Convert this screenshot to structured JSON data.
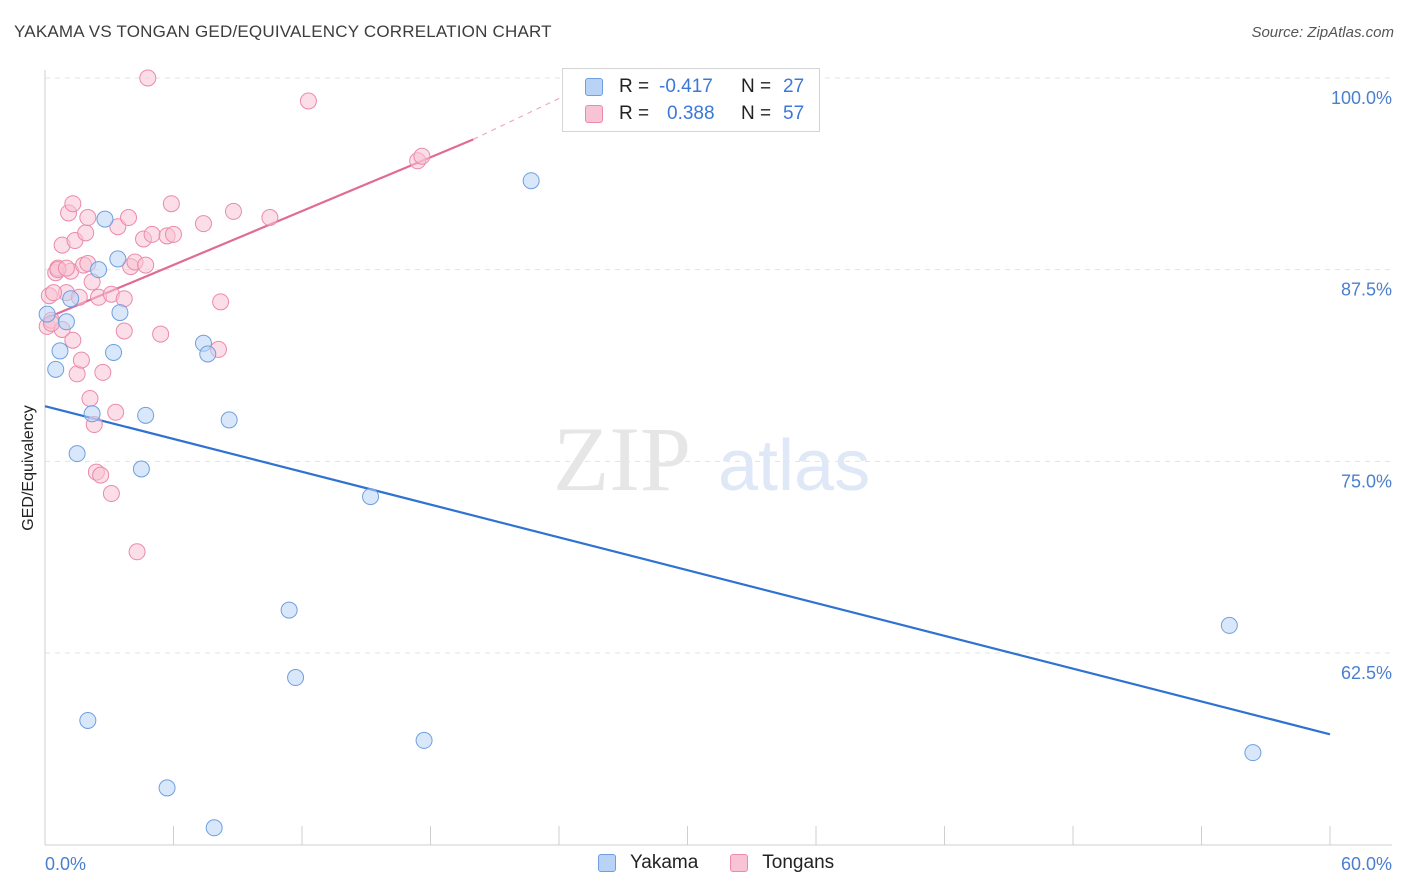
{
  "title": "YAKAMA VS TONGAN GED/EQUIVALENCY CORRELATION CHART",
  "source": "Source: ZipAtlas.com",
  "watermark": {
    "zip": "ZIP",
    "atlas": "atlas"
  },
  "legend": {
    "rows": [
      {
        "r_label": "R =",
        "r_value": "-0.417",
        "n_label": "N =",
        "n_value": "27"
      },
      {
        "r_label": "R =",
        "r_value": "0.388",
        "n_label": "N =",
        "n_value": "57"
      }
    ]
  },
  "bottom_legend": {
    "series1": "Yakama",
    "series2": "Tongans"
  },
  "colors": {
    "yakama_fill": "#b8d3f5",
    "yakama_stroke": "#6f9fe0",
    "yakama_line": "#2f72d1",
    "tongans_fill": "#f8c3d4",
    "tongans_stroke": "#ec8aaa",
    "tongans_line": "#e06b94",
    "axis_label": "#4a7fd0",
    "grid": "#e3e3e3"
  },
  "chart_data": {
    "type": "scatter",
    "title": "YAKAMA VS TONGAN GED/EQUIVALENCY CORRELATION CHART",
    "xlabel": "",
    "ylabel": "GED/Equivalency",
    "xlim": [
      0,
      60
    ],
    "ylim": [
      50.5,
      102
    ],
    "x_tick_labels": [
      "0.0%",
      "60.0%"
    ],
    "y_ticks": [
      62.5,
      75.0,
      87.5,
      100.0
    ],
    "y_tick_labels": [
      "62.5%",
      "75.0%",
      "87.5%",
      "100.0%"
    ],
    "series": [
      {
        "name": "Yakama",
        "points": [
          [
            0.1,
            84.6
          ],
          [
            0.5,
            81.0
          ],
          [
            0.7,
            82.2
          ],
          [
            1.0,
            84.1
          ],
          [
            1.2,
            85.6
          ],
          [
            1.5,
            75.5
          ],
          [
            2.0,
            58.1
          ],
          [
            2.2,
            78.1
          ],
          [
            2.5,
            87.5
          ],
          [
            2.8,
            90.8
          ],
          [
            3.2,
            82.1
          ],
          [
            3.4,
            88.2
          ],
          [
            3.5,
            84.7
          ],
          [
            4.5,
            74.5
          ],
          [
            4.7,
            78.0
          ],
          [
            5.7,
            53.7
          ],
          [
            7.4,
            82.7
          ],
          [
            7.6,
            82.0
          ],
          [
            7.9,
            51.1
          ],
          [
            8.6,
            77.7
          ],
          [
            11.4,
            65.3
          ],
          [
            11.7,
            60.9
          ],
          [
            15.2,
            72.7
          ],
          [
            17.7,
            56.8
          ],
          [
            22.7,
            93.3
          ],
          [
            55.3,
            64.3
          ],
          [
            56.4,
            56.0
          ]
        ],
        "trend": {
          "x": [
            0,
            60
          ],
          "y": [
            78.6,
            57.2
          ]
        }
      },
      {
        "name": "Tongans",
        "points": [
          [
            0.1,
            83.8
          ],
          [
            0.2,
            85.8
          ],
          [
            0.3,
            84.2
          ],
          [
            0.5,
            87.3
          ],
          [
            0.6,
            87.6
          ],
          [
            0.8,
            89.1
          ],
          [
            0.8,
            83.6
          ],
          [
            1.0,
            86.0
          ],
          [
            1.1,
            91.2
          ],
          [
            1.2,
            87.4
          ],
          [
            1.3,
            91.8
          ],
          [
            1.3,
            82.9
          ],
          [
            1.4,
            89.4
          ],
          [
            1.5,
            80.7
          ],
          [
            1.6,
            85.7
          ],
          [
            1.7,
            81.6
          ],
          [
            1.8,
            87.8
          ],
          [
            1.9,
            89.9
          ],
          [
            2.0,
            90.9
          ],
          [
            2.0,
            87.9
          ],
          [
            2.1,
            79.1
          ],
          [
            2.2,
            86.7
          ],
          [
            2.3,
            77.4
          ],
          [
            2.4,
            74.3
          ],
          [
            2.5,
            85.7
          ],
          [
            2.6,
            74.1
          ],
          [
            2.7,
            80.8
          ],
          [
            3.1,
            85.9
          ],
          [
            3.1,
            72.9
          ],
          [
            3.3,
            78.2
          ],
          [
            3.4,
            90.3
          ],
          [
            3.7,
            85.6
          ],
          [
            3.7,
            83.5
          ],
          [
            3.9,
            90.9
          ],
          [
            4.0,
            87.7
          ],
          [
            4.2,
            88.0
          ],
          [
            4.3,
            69.1
          ],
          [
            4.6,
            89.5
          ],
          [
            4.7,
            87.8
          ],
          [
            4.8,
            100.0
          ],
          [
            5.0,
            89.8
          ],
          [
            5.4,
            83.3
          ],
          [
            5.7,
            89.7
          ],
          [
            5.9,
            91.8
          ],
          [
            6.0,
            89.8
          ],
          [
            7.4,
            90.5
          ],
          [
            8.1,
            82.3
          ],
          [
            8.2,
            85.4
          ],
          [
            8.8,
            91.3
          ],
          [
            10.5,
            90.9
          ],
          [
            12.3,
            98.5
          ],
          [
            17.4,
            94.6
          ],
          [
            17.6,
            94.9
          ],
          [
            0.4,
            86.0
          ],
          [
            0.3,
            84.0
          ],
          [
            0.6,
            87.5
          ],
          [
            1.0,
            87.6
          ]
        ],
        "trend": {
          "x": [
            0,
            20
          ],
          "y": [
            84.3,
            96.0
          ],
          "dashed_extension": {
            "x": [
              20,
              24.5
            ],
            "y": [
              96.0,
              99.0
            ]
          }
        }
      }
    ]
  }
}
